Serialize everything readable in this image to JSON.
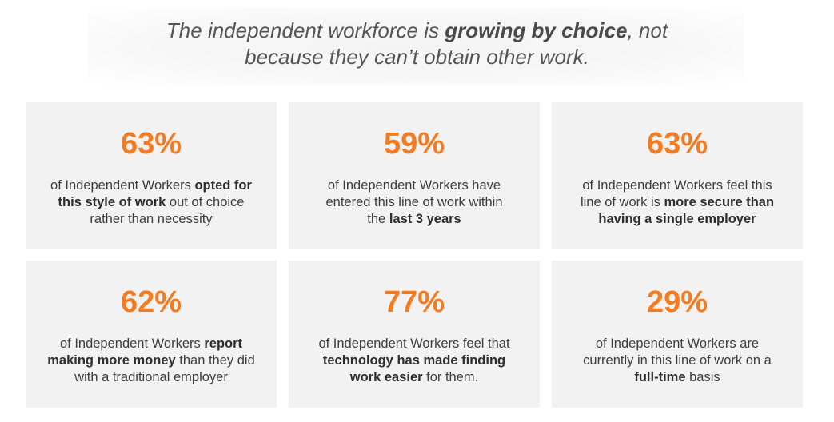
{
  "headline": {
    "part1": "The independent workforce is ",
    "emphasis": "growing by choice",
    "part2": ", not",
    "line2": "because they can’t obtain other work."
  },
  "colors": {
    "accent": "#f47b20",
    "card_background": "#f2f2f2",
    "text": "#3d3d3d"
  },
  "cards": [
    {
      "stat": "63%",
      "t1": "of Independent Workers ",
      "b1": "opted for this style of work",
      "t2": " out of choice rather than necessity"
    },
    {
      "stat": "59%",
      "t1": "of Independent Workers have entered this line of work within the ",
      "b1": "last 3 years",
      "t2": ""
    },
    {
      "stat": "63%",
      "t1": "of Independent Workers feel this line of work is ",
      "b1": "more secure than having a single employer",
      "t2": ""
    },
    {
      "stat": "62%",
      "t1": "of Independent Workers ",
      "b1": "report making more money",
      "t2": " than they did with a traditional employer"
    },
    {
      "stat": "77%",
      "t1": "of Independent Workers feel that ",
      "b1": "technology has made finding work easier",
      "t2": " for them."
    },
    {
      "stat": "29%",
      "t1": "of Independent Workers are currently in this line of work on a ",
      "b1": "full-time",
      "t2": " basis"
    }
  ]
}
